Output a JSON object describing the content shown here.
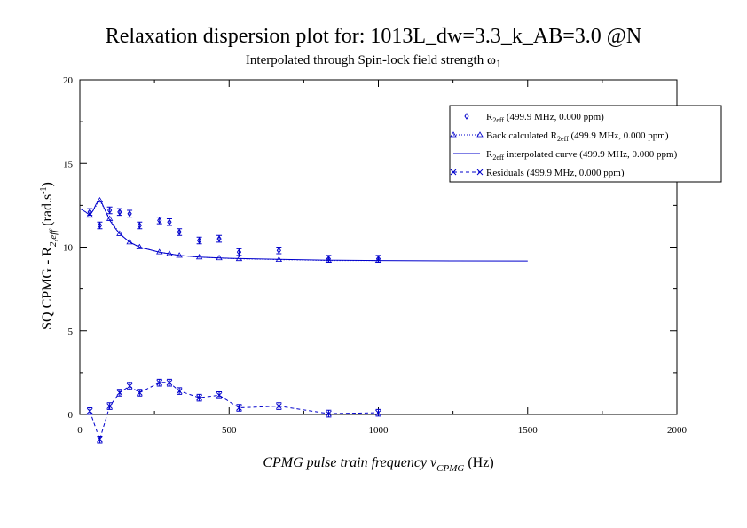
{
  "chart_data": {
    "type": "scatter",
    "title": "Relaxation dispersion plot for: 1013L_dw=3.3_k_AB=3.0 @N",
    "subtitle": {
      "text": "Interpolated through Spin-lock field strength ω",
      "sub": "1"
    },
    "xlabel": {
      "main": "CPMG pulse train frequency ν",
      "sub": "CPMG",
      "unit": " (Hz)"
    },
    "ylabel": {
      "main": "SQ CPMG - R",
      "sub": "2,eff",
      "unit": " (rad.s",
      "sup": "-1",
      "close": ")"
    },
    "xlim": [
      0,
      2000
    ],
    "ylim": [
      0,
      20
    ],
    "xticks": [
      "0",
      "500",
      "1000",
      "1500",
      "2000"
    ],
    "yticks": [
      "0",
      "5",
      "10",
      "15",
      "20"
    ],
    "legend_position": "top-right",
    "series": [
      {
        "name": {
          "pre": "R",
          "sub": "2eff",
          "post": " (499.9 MHz, 0.000 ppm)"
        },
        "marker": "diamond",
        "error_bars": true,
        "x": [
          33.3,
          66.7,
          100,
          133.3,
          166.7,
          200,
          266.7,
          300,
          333.3,
          400,
          466.7,
          533.3,
          666.7,
          833.3,
          1000
        ],
        "y": [
          12.1,
          11.3,
          12.2,
          12.1,
          12.0,
          11.3,
          11.6,
          11.5,
          10.9,
          10.4,
          10.5,
          9.7,
          9.8,
          9.3,
          9.3
        ],
        "err": [
          0.2,
          0.2,
          0.2,
          0.2,
          0.2,
          0.2,
          0.2,
          0.2,
          0.2,
          0.2,
          0.2,
          0.2,
          0.2,
          0.2,
          0.2
        ]
      },
      {
        "name": {
          "pre": "Back calculated R",
          "sub": "2eff",
          "post": " (499.9 MHz, 0.000 ppm)"
        },
        "marker": "triangle",
        "x": [
          33.3,
          66.7,
          100,
          133.3,
          166.7,
          200,
          266.7,
          300,
          333.3,
          400,
          466.7,
          533.3,
          666.7,
          833.3,
          1000
        ],
        "y": [
          11.9,
          12.8,
          11.7,
          10.8,
          10.3,
          10.0,
          9.7,
          9.6,
          9.5,
          9.4,
          9.35,
          9.3,
          9.25,
          9.2,
          9.2
        ]
      },
      {
        "name": {
          "pre": "R",
          "sub": "2eff",
          "post": " interpolated curve (499.9 MHz, 0.000 ppm)"
        },
        "marker": "none",
        "x": [
          0,
          10,
          20,
          33.3,
          45,
          55,
          66.7,
          75,
          90,
          100,
          120,
          133.3,
          166.7,
          200,
          266.7,
          333.3,
          400,
          500,
          666.7,
          833.3,
          1000,
          1250,
          1500
        ],
        "y": [
          12.3,
          12.2,
          12.1,
          11.9,
          12.2,
          12.6,
          12.8,
          12.6,
          12.0,
          11.6,
          11.1,
          10.8,
          10.3,
          10.0,
          9.7,
          9.5,
          9.4,
          9.33,
          9.27,
          9.22,
          9.2,
          9.18,
          9.17
        ]
      },
      {
        "name": {
          "pre": "Residuals",
          "sub": "",
          "post": " (499.9 MHz, 0.000 ppm)"
        },
        "marker": "x",
        "error_bars": true,
        "x": [
          33.3,
          66.7,
          100,
          133.3,
          166.7,
          200,
          266.7,
          300,
          333.3,
          400,
          466.7,
          533.3,
          666.7,
          833.3,
          1000
        ],
        "y": [
          0.2,
          -1.5,
          0.5,
          1.3,
          1.7,
          1.3,
          1.9,
          1.9,
          1.4,
          1.0,
          1.15,
          0.4,
          0.5,
          0.05,
          0.1
        ],
        "err": [
          0.2,
          0.2,
          0.2,
          0.2,
          0.2,
          0.2,
          0.2,
          0.2,
          0.2,
          0.2,
          0.2,
          0.2,
          0.2,
          0.2,
          0.2
        ]
      }
    ],
    "colors": {
      "data": "#0000cc",
      "axis": "#000000"
    }
  }
}
